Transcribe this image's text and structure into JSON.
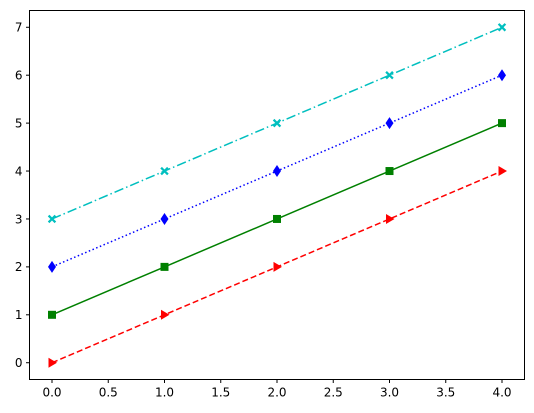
{
  "chart_data": {
    "type": "line",
    "title": "",
    "xlabel": "",
    "ylabel": "",
    "xlim": [
      -0.2,
      4.2
    ],
    "ylim": [
      -0.35,
      7.35
    ],
    "x_ticks": [
      0,
      0.5,
      1,
      1.5,
      2,
      2.5,
      3,
      3.5,
      4
    ],
    "x_tick_labels": [
      "0.0",
      "0.5",
      "1.0",
      "1.5",
      "2.0",
      "2.5",
      "3.0",
      "3.5",
      "4.0"
    ],
    "y_ticks": [
      0,
      1,
      2,
      3,
      4,
      5,
      6,
      7
    ],
    "y_tick_labels": [
      "0",
      "1",
      "2",
      "3",
      "4",
      "5",
      "6",
      "7"
    ],
    "grid": false,
    "legend": "none",
    "x": [
      0,
      1,
      2,
      3,
      4
    ],
    "series": [
      {
        "values": [
          0,
          1,
          2,
          3,
          4
        ],
        "color": "#ff0000",
        "linestyle": "dashed",
        "marker": "triangle-right"
      },
      {
        "values": [
          1,
          2,
          3,
          4,
          5
        ],
        "color": "#008000",
        "linestyle": "solid",
        "marker": "square"
      },
      {
        "values": [
          2,
          3,
          4,
          5,
          6
        ],
        "color": "#0000ff",
        "linestyle": "dotted",
        "marker": "thin-diamond"
      },
      {
        "values": [
          3,
          4,
          5,
          6,
          7
        ],
        "color": "#00bfbf",
        "linestyle": "dashdot",
        "marker": "filled-x"
      }
    ]
  }
}
